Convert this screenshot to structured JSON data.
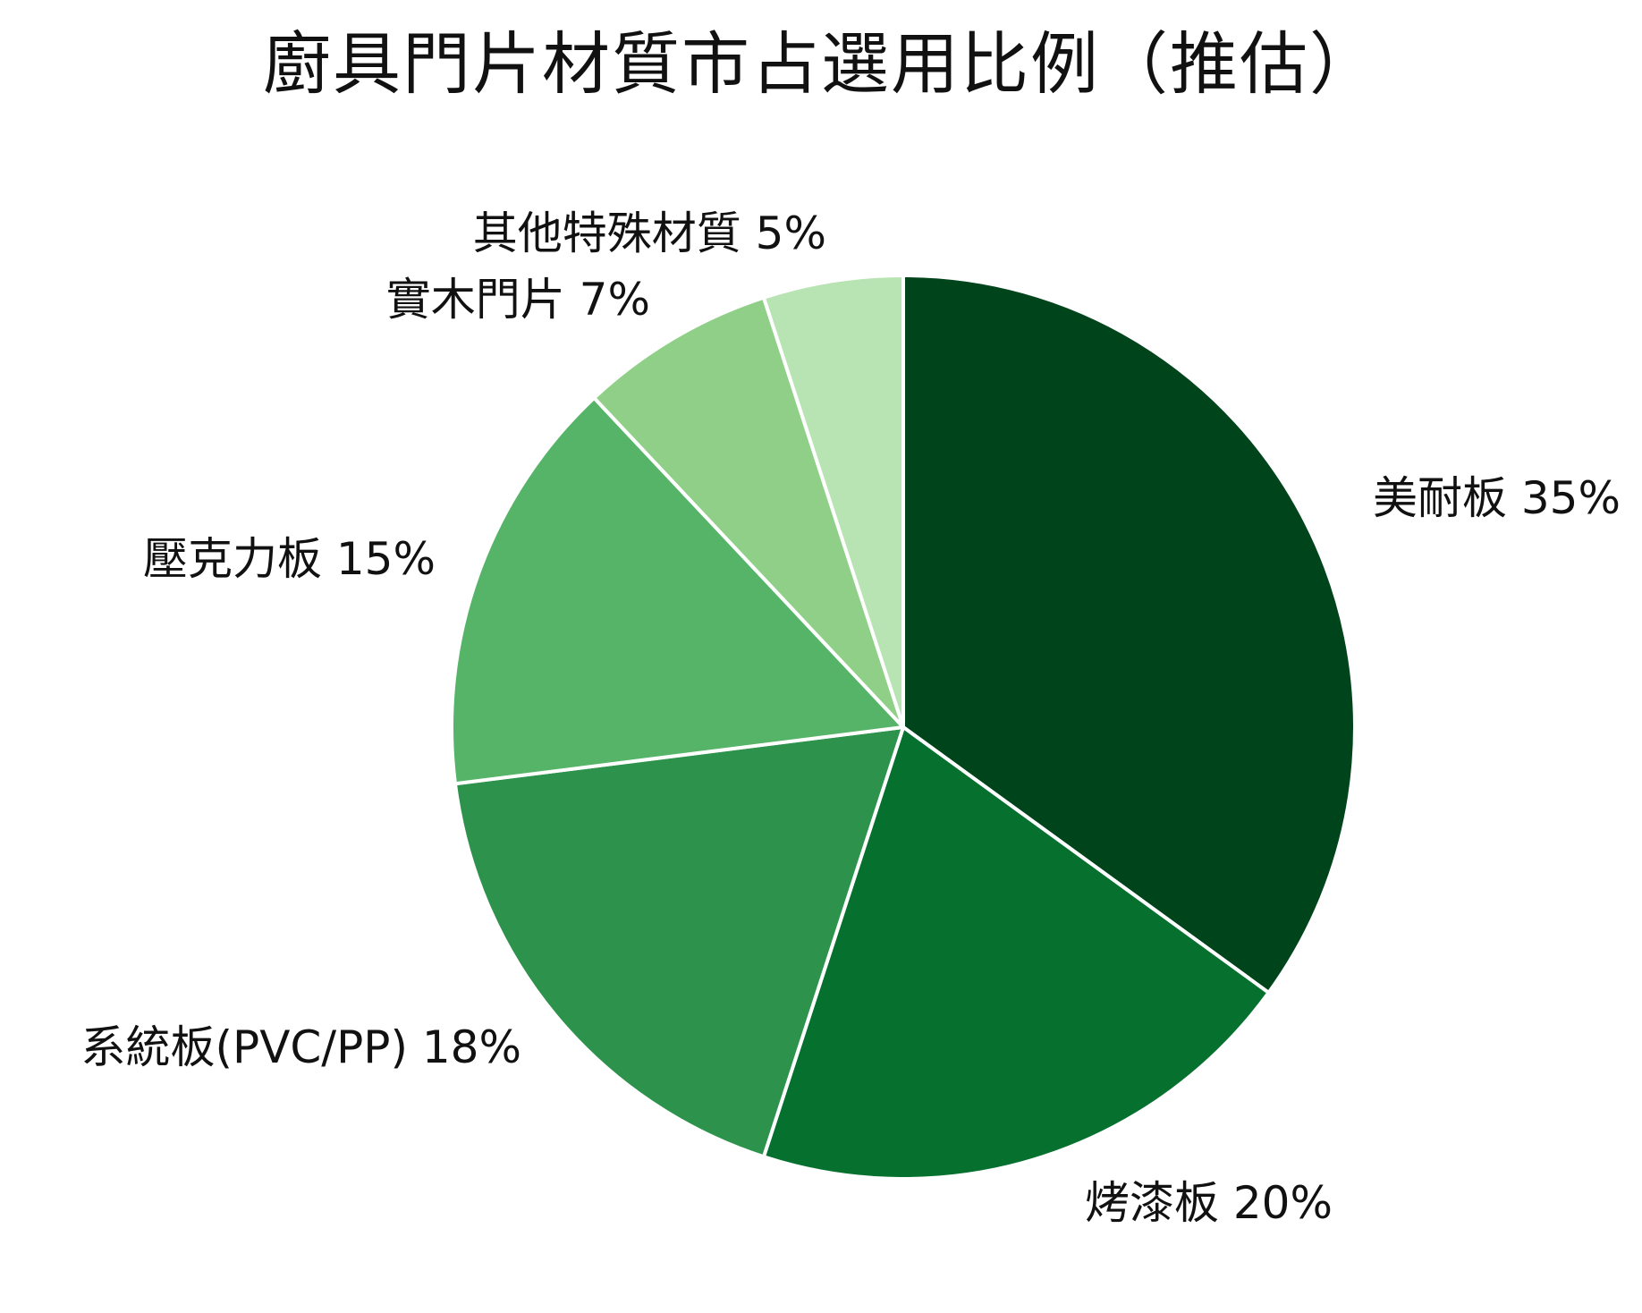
{
  "chart_data": {
    "type": "pie",
    "title": "廚具門片材質市占選用比例（推估）",
    "labels": [
      "美耐板 35%",
      "烤漆板 20%",
      "系統板(PVC/PP) 18%",
      "壓克力板 15%",
      "實木門片 7%",
      "其他特殊材質 5%"
    ],
    "categories": [
      "美耐板",
      "烤漆板",
      "系統板(PVC/PP)",
      "壓克力板",
      "實木門片",
      "其他特殊材質"
    ],
    "values": [
      35,
      20,
      18,
      15,
      7,
      5
    ],
    "unit": "%",
    "start_angle": "12 o'clock",
    "direction": "clockwise",
    "colors": [
      "#00441b",
      "#06702f",
      "#2d924c",
      "#56b468",
      "#8fcf88",
      "#b8e3b2"
    ],
    "slice_border_color": "#ffffff"
  }
}
